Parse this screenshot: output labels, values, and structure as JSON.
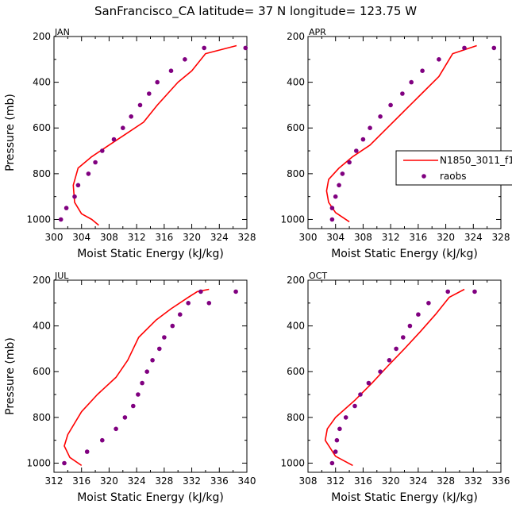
{
  "title": "SanFrancisco_CA  latitude= 37 N longitude= 123.75 W",
  "legend": {
    "entries": [
      "N1850_3011_f1",
      "raobs"
    ],
    "colors": [
      "#ff0000",
      "#800080"
    ],
    "placement": "right-middle"
  },
  "chart_data": [
    {
      "type": "line",
      "panel": "JAN",
      "xlabel": "Moist Static Energy (kJ/kg)",
      "ylabel": "Pressure (mb)",
      "xlim": [
        300,
        328
      ],
      "ylim": [
        1040,
        200
      ],
      "xticks": [
        300,
        304,
        308,
        312,
        316,
        320,
        324,
        328
      ],
      "yticks": [
        200,
        400,
        600,
        800,
        1000
      ],
      "series": [
        {
          "name": "N1850_3011_f1",
          "style": "line",
          "color": "#ff0000",
          "x": [
            306.5,
            305.5,
            304,
            303,
            302.8,
            303.5,
            305.5,
            308,
            310.5,
            313,
            315,
            316.5,
            318,
            320,
            322,
            326.5
          ],
          "y": [
            1025,
            1000,
            975,
            925,
            850,
            775,
            725,
            675,
            625,
            575,
            500,
            450,
            400,
            350,
            275,
            240
          ]
        },
        {
          "name": "raobs",
          "style": "scatter",
          "color": "#800080",
          "x": [
            301,
            301.8,
            303,
            303.5,
            305,
            306,
            307,
            308.7,
            310,
            311.2,
            312.5,
            313.8,
            315,
            317,
            319,
            321.8,
            327.8
          ],
          "y": [
            1000,
            950,
            900,
            850,
            800,
            750,
            700,
            650,
            600,
            550,
            500,
            450,
            400,
            350,
            300,
            250,
            250
          ]
        }
      ]
    },
    {
      "type": "line",
      "panel": "APR",
      "xlabel": "Moist Static Energy (kJ/kg)",
      "ylabel": "",
      "xlim": [
        300,
        328
      ],
      "ylim": [
        1040,
        200
      ],
      "xticks": [
        300,
        304,
        308,
        312,
        316,
        320,
        324,
        328
      ],
      "yticks": [
        200,
        400,
        600,
        800,
        1000
      ],
      "series": [
        {
          "name": "N1850_3011_f1",
          "style": "line",
          "color": "#ff0000",
          "x": [
            306,
            304,
            303,
            302.7,
            303,
            304.5,
            306.5,
            309,
            311.5,
            314,
            316.5,
            319,
            321,
            324.5
          ],
          "y": [
            1010,
            970,
            925,
            875,
            825,
            775,
            725,
            675,
            600,
            525,
            450,
            375,
            275,
            240
          ]
        },
        {
          "name": "raobs",
          "style": "scatter",
          "color": "#800080",
          "x": [
            303.5,
            303.5,
            304,
            304.5,
            305,
            306,
            307,
            308,
            309,
            310.5,
            312,
            313.7,
            315,
            316.6,
            319,
            322.7,
            327
          ],
          "y": [
            1000,
            950,
            900,
            850,
            800,
            750,
            700,
            650,
            600,
            550,
            500,
            450,
            400,
            350,
            300,
            250,
            250
          ]
        }
      ]
    },
    {
      "type": "line",
      "panel": "JUL",
      "xlabel": "Moist Static Energy (kJ/kg)",
      "ylabel": "Pressure (mb)",
      "xlim": [
        312,
        340
      ],
      "ylim": [
        1040,
        200
      ],
      "xticks": [
        312,
        316,
        320,
        324,
        328,
        332,
        336,
        340
      ],
      "yticks": [
        200,
        400,
        600,
        800,
        1000
      ],
      "series": [
        {
          "name": "N1850_3011_f1",
          "style": "line",
          "color": "#ff0000",
          "x": [
            316,
            314.3,
            313.5,
            314,
            316,
            318.3,
            321,
            322.7,
            324.3,
            326.8,
            329,
            331.5,
            332.8,
            334.5
          ],
          "y": [
            1010,
            975,
            925,
            875,
            775,
            700,
            625,
            550,
            450,
            375,
            325,
            275,
            250,
            240
          ]
        },
        {
          "name": "raobs",
          "style": "scatter",
          "color": "#800080",
          "x": [
            313.5,
            316.8,
            319,
            321,
            322.3,
            323.5,
            324.2,
            324.8,
            325.5,
            326.3,
            327.3,
            328,
            329.2,
            330.3,
            331.5,
            333.3,
            334.5,
            338.4
          ],
          "y": [
            1000,
            950,
            900,
            850,
            800,
            750,
            700,
            650,
            600,
            550,
            500,
            450,
            400,
            350,
            300,
            250,
            300,
            250
          ]
        }
      ]
    },
    {
      "type": "line",
      "panel": "OCT",
      "xlabel": "Moist Static Energy (kJ/kg)",
      "ylabel": "",
      "xlim": [
        308,
        336
      ],
      "ylim": [
        1040,
        200
      ],
      "xticks": [
        308,
        312,
        316,
        320,
        324,
        328,
        332,
        336
      ],
      "yticks": [
        200,
        400,
        600,
        800,
        1000
      ],
      "series": [
        {
          "name": "N1850_3011_f1",
          "style": "line",
          "color": "#ff0000",
          "x": [
            314.5,
            312,
            310.5,
            310.8,
            312,
            314.8,
            317.3,
            319.6,
            322,
            324.3,
            326.5,
            328.5,
            330.7
          ],
          "y": [
            1010,
            970,
            900,
            850,
            800,
            725,
            650,
            575,
            500,
            425,
            350,
            275,
            240
          ]
        },
        {
          "name": "raobs",
          "style": "scatter",
          "color": "#800080",
          "x": [
            311.5,
            312,
            312.2,
            312.6,
            313.5,
            314.8,
            315.6,
            316.8,
            318.5,
            319.8,
            320.8,
            321.8,
            322.8,
            324,
            325.5,
            328.3,
            332.2
          ],
          "y": [
            1000,
            950,
            900,
            850,
            800,
            750,
            700,
            650,
            600,
            550,
            500,
            450,
            400,
            350,
            300,
            250,
            250
          ]
        }
      ]
    }
  ]
}
